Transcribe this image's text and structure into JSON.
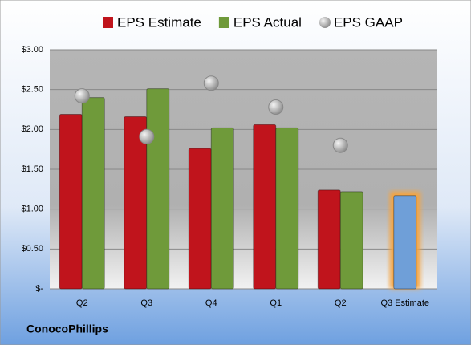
{
  "chart_data": {
    "type": "bar",
    "categories": [
      "Q2",
      "Q3",
      "Q4",
      "Q1",
      "Q2",
      "Q3 Estimate"
    ],
    "series": [
      {
        "name": "EPS Estimate",
        "type": "bar",
        "color": "#c0141c",
        "values": [
          2.19,
          2.16,
          1.76,
          2.06,
          1.24,
          1.17
        ]
      },
      {
        "name": "EPS Actual",
        "type": "bar",
        "color": "#6f9a3a",
        "values": [
          2.4,
          2.51,
          2.02,
          2.02,
          1.22,
          null
        ]
      },
      {
        "name": "EPS GAAP",
        "type": "scatter",
        "color": "#a8a8a8",
        "values": [
          2.42,
          1.91,
          2.58,
          2.28,
          1.8,
          null
        ]
      }
    ],
    "highlight": {
      "index": 5,
      "color": "#6f9fd8",
      "glow": "#f5a440"
    },
    "ylim": [
      0,
      3
    ],
    "yticks": [
      {
        "value": 0,
        "label": "$-"
      },
      {
        "value": 0.5,
        "label": "$0.50"
      },
      {
        "value": 1,
        "label": "$1.00"
      },
      {
        "value": 1.5,
        "label": "$1.50"
      },
      {
        "value": 2,
        "label": "$2.00"
      },
      {
        "value": 2.5,
        "label": "$2.50"
      },
      {
        "value": 3,
        "label": "$3.00"
      }
    ],
    "grid": true,
    "company": "ConocoPhillips"
  }
}
